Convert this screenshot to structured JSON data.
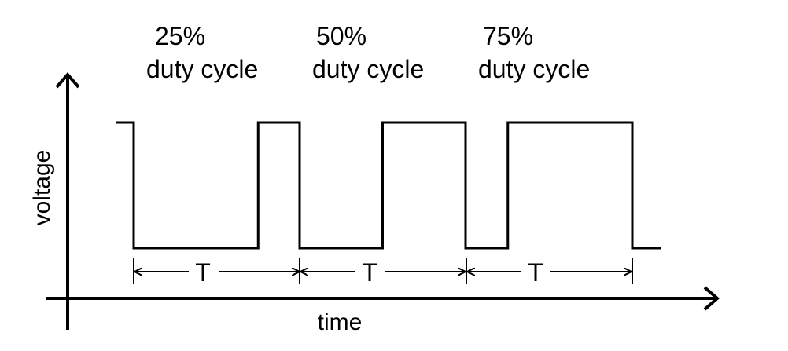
{
  "diagram": {
    "duty_cycles": [
      {
        "percent": "25%",
        "caption": "duty cycle",
        "value": 0.25
      },
      {
        "percent": "50%",
        "caption": "duty cycle",
        "value": 0.5
      },
      {
        "percent": "75%",
        "caption": "duty cycle",
        "value": 0.75
      }
    ],
    "period_label": "T",
    "x_axis_label": "time",
    "y_axis_label": "voltage"
  }
}
